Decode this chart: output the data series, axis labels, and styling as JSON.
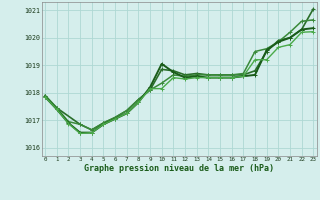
{
  "title": "Graphe pression niveau de la mer (hPa)",
  "background_color": "#d5eeec",
  "grid_color": "#aed8d4",
  "xmin": 0,
  "xmax": 23,
  "ymin": 1015.7,
  "ymax": 1021.3,
  "yticks": [
    1016,
    1017,
    1018,
    1019,
    1020,
    1021
  ],
  "xticks": [
    0,
    1,
    2,
    3,
    4,
    5,
    6,
    7,
    8,
    9,
    10,
    11,
    12,
    13,
    14,
    15,
    16,
    17,
    18,
    19,
    20,
    21,
    22,
    23
  ],
  "series": [
    {
      "x": [
        0,
        1,
        3,
        4,
        5,
        6,
        7,
        8,
        9,
        10,
        11,
        12,
        13,
        14,
        15,
        16,
        17,
        18,
        19,
        20,
        21,
        22,
        23
      ],
      "y": [
        1017.9,
        1017.45,
        1016.85,
        1016.65,
        1016.9,
        1017.1,
        1017.35,
        1017.75,
        1018.1,
        1018.85,
        1018.8,
        1018.65,
        1018.7,
        1018.65,
        1018.65,
        1018.65,
        1018.65,
        1018.8,
        1019.5,
        1019.9,
        1020.0,
        1020.3,
        1021.05
      ],
      "color": "#2a6e2a",
      "lw": 1.2,
      "ms": 2.5
    },
    {
      "x": [
        0,
        1,
        2,
        3,
        4,
        5,
        6,
        7,
        8,
        9,
        10,
        11,
        12,
        13,
        14,
        15,
        16,
        17,
        18,
        19,
        20,
        21,
        22,
        23
      ],
      "y": [
        1017.9,
        1017.45,
        1016.95,
        1016.85,
        1016.65,
        1016.9,
        1017.1,
        1017.35,
        1017.75,
        1018.1,
        1018.35,
        1018.65,
        1018.6,
        1018.65,
        1018.65,
        1018.65,
        1018.65,
        1018.7,
        1019.5,
        1019.6,
        1019.85,
        1020.2,
        1020.6,
        1020.65
      ],
      "color": "#3a8a3a",
      "lw": 1.1,
      "ms": 2.5
    },
    {
      "x": [
        0,
        1,
        2,
        3,
        4,
        5,
        6,
        7,
        8,
        9,
        10,
        11,
        12,
        13,
        14,
        15,
        16,
        17,
        18,
        19,
        20,
        21,
        22,
        23
      ],
      "y": [
        1017.85,
        1017.4,
        1016.9,
        1016.55,
        1016.55,
        1016.85,
        1017.05,
        1017.25,
        1017.65,
        1018.2,
        1019.05,
        1018.75,
        1018.55,
        1018.6,
        1018.55,
        1018.55,
        1018.55,
        1018.6,
        1018.65,
        1019.55,
        1019.85,
        1020.0,
        1020.3,
        1020.35
      ],
      "color": "#1a5c1a",
      "lw": 1.4,
      "ms": 2.5
    },
    {
      "x": [
        0,
        1,
        2,
        3,
        4,
        5,
        6,
        7,
        8,
        9,
        10,
        11,
        12,
        13,
        14,
        15,
        16,
        17,
        18,
        19,
        20,
        21,
        22,
        23
      ],
      "y": [
        1017.85,
        1017.4,
        1016.88,
        1016.52,
        1016.55,
        1016.85,
        1017.05,
        1017.25,
        1017.65,
        1018.15,
        1018.15,
        1018.55,
        1018.5,
        1018.55,
        1018.55,
        1018.55,
        1018.55,
        1018.6,
        1019.2,
        1019.2,
        1019.65,
        1019.75,
        1020.2,
        1020.22
      ],
      "color": "#4aaa4a",
      "lw": 1.0,
      "ms": 2.5
    }
  ]
}
